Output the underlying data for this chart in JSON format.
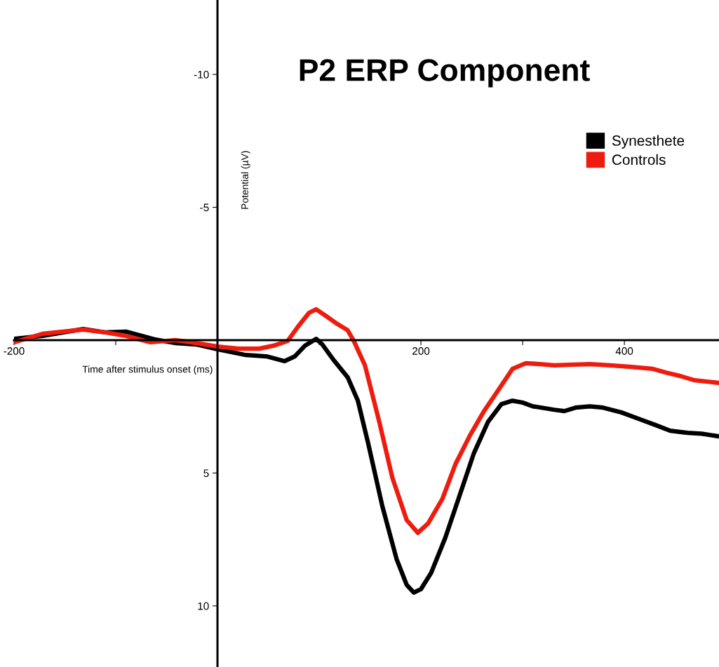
{
  "chart_data": {
    "type": "line",
    "title": "P2 ERP Component",
    "xlabel": "Time after stimulus onset (ms)",
    "ylabel": "Potential (µV)",
    "xlim": [
      -200,
      493
    ],
    "ylim": [
      12.3,
      -12.8
    ],
    "xticks": [
      -200,
      {
        "value": -100,
        "label": null
      },
      {
        "value": 100,
        "label": null
      },
      200,
      {
        "value": 300,
        "label": null
      },
      400
    ],
    "yticks": [
      -10,
      -5,
      5,
      10
    ],
    "legend": "top right",
    "grid": false,
    "marker": "none",
    "line_style": "solid",
    "series": [
      {
        "name": "Synesthete",
        "color": "#000000",
        "x": [
          -200,
          -172,
          -132,
          -110,
          -90,
          -62,
          -41,
          -21,
          0,
          28,
          48,
          66,
          76,
          86,
          97,
          103,
          114,
          128,
          138,
          148,
          162,
          176,
          186,
          193,
          200,
          210,
          224,
          238,
          252,
          266,
          279,
          290,
          300,
          310,
          331,
          341,
          352,
          366,
          379,
          397,
          414,
          431,
          445,
          462,
          476,
          493
        ],
        "values": [
          -0.05,
          -0.16,
          -0.42,
          -0.29,
          -0.32,
          -0.03,
          0.11,
          0.16,
          0.34,
          0.56,
          0.61,
          0.79,
          0.61,
          0.21,
          -0.05,
          0.16,
          0.74,
          1.4,
          2.28,
          3.86,
          6.24,
          8.23,
          9.21,
          9.5,
          9.37,
          8.76,
          7.43,
          5.85,
          4.26,
          3.07,
          2.41,
          2.28,
          2.35,
          2.49,
          2.62,
          2.67,
          2.54,
          2.49,
          2.54,
          2.72,
          2.96,
          3.2,
          3.41,
          3.49,
          3.52,
          3.62
        ]
      },
      {
        "name": "Controls",
        "color": "#ee1c0e",
        "x": [
          -200,
          -172,
          -132,
          -110,
          -90,
          -66,
          -41,
          -21,
          0,
          21,
          41,
          55,
          69,
          79,
          90,
          97,
          107,
          117,
          128,
          134,
          145,
          159,
          172,
          186,
          197,
          207,
          221,
          234,
          248,
          262,
          276,
          290,
          303,
          317,
          331,
          345,
          366,
          386,
          407,
          428,
          441,
          455,
          469,
          493
        ],
        "values": [
          0.08,
          -0.24,
          -0.4,
          -0.29,
          -0.16,
          0.08,
          0,
          0.11,
          0.24,
          0.32,
          0.32,
          0.21,
          0.03,
          -0.5,
          -1.03,
          -1.16,
          -0.9,
          -0.63,
          -0.37,
          0.03,
          0.95,
          3.07,
          5.19,
          6.77,
          7.25,
          6.9,
          5.98,
          4.66,
          3.6,
          2.67,
          1.88,
          1.08,
          0.87,
          0.9,
          0.95,
          0.93,
          0.9,
          0.95,
          1.01,
          1.08,
          1.22,
          1.35,
          1.51,
          1.61
        ]
      }
    ]
  }
}
